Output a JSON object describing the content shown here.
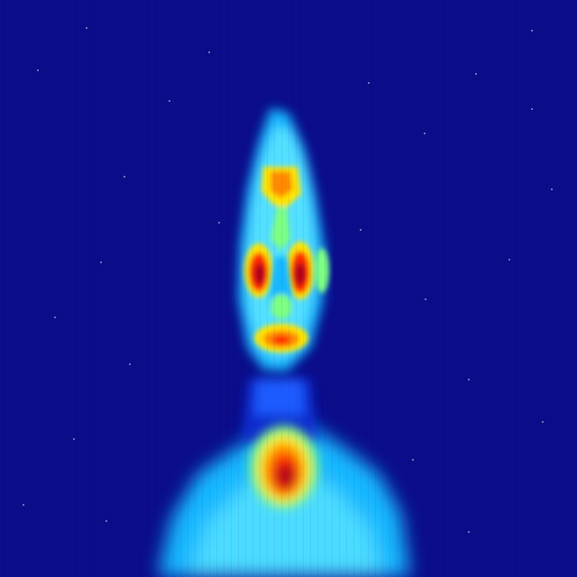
{
  "image": {
    "kind": "thermal-image",
    "palette": {
      "background": "#0a0c8a",
      "background_dark": "#06087a",
      "cold_blue": "#0a2bd0",
      "blue": "#1f5cff",
      "cyan": "#14b8ff",
      "light_cyan": "#52e0ff",
      "green": "#7dff82",
      "yellow": "#ffe600",
      "orange": "#ff8a00",
      "red": "#ff2b00",
      "dark_red": "#b00012"
    },
    "subject": {
      "regions": [
        "head",
        "face",
        "eyes",
        "nose",
        "mouth",
        "neck",
        "throat",
        "shoulders",
        "chest"
      ]
    }
  }
}
